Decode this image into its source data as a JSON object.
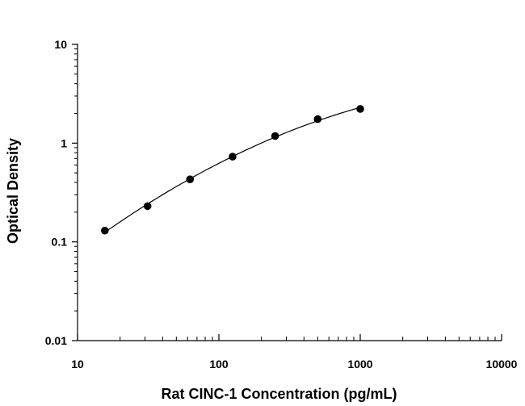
{
  "chart_data": {
    "type": "scatter",
    "title": "",
    "xlabel": "Rat CINC-1 Concentration (pg/mL)",
    "ylabel": "Optical Density",
    "x_scale": "log",
    "y_scale": "log",
    "xlim": [
      10,
      10000
    ],
    "ylim": [
      0.01,
      10
    ],
    "x_ticks": [
      "10",
      "100",
      "1000",
      "10000"
    ],
    "y_ticks": [
      "10",
      "1",
      "0.1",
      "0.01"
    ],
    "grid": false,
    "legend": "none",
    "series": [
      {
        "x": [
          15.6,
          31.3,
          62.5,
          125,
          250,
          500,
          1000
        ],
        "y": [
          0.13,
          0.23,
          0.43,
          0.73,
          1.18,
          1.75,
          2.22
        ],
        "marker": "filled-circle",
        "fit_line": true
      }
    ],
    "colors": {
      "marker": "#000000",
      "line": "#000000",
      "axis": "#000000"
    }
  }
}
